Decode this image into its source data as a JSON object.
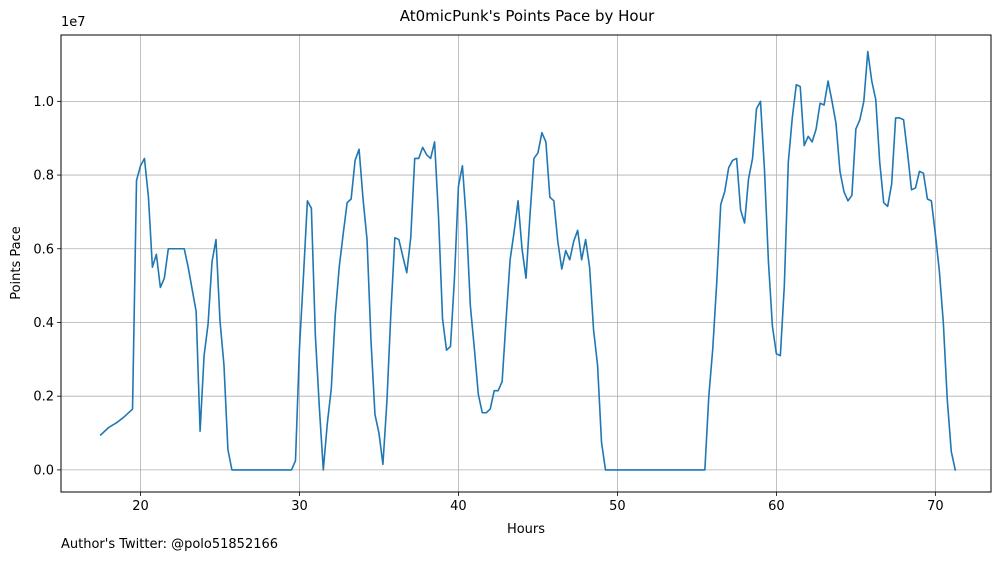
{
  "chart_data": {
    "type": "line",
    "title": "At0micPunk's Points Pace by Hour",
    "xlabel": "Hours",
    "ylabel": "Points Pace",
    "y_offset_label": "1e7",
    "y_scale": 10000000,
    "xlim": [
      15,
      73.5
    ],
    "ylim": [
      -600000,
      11800000
    ],
    "x_ticks": [
      20,
      30,
      40,
      50,
      60,
      70
    ],
    "x_tick_labels": [
      "20",
      "30",
      "40",
      "50",
      "60",
      "70"
    ],
    "y_ticks": [
      0,
      2000000,
      4000000,
      6000000,
      8000000,
      10000000
    ],
    "y_tick_labels": [
      "0.0",
      "0.2",
      "0.4",
      "0.6",
      "0.8",
      "1.0"
    ],
    "grid": true,
    "line_color": "#1f77b4",
    "series": [
      {
        "name": "",
        "x": [
          17.5,
          18.0,
          18.5,
          19.0,
          19.5,
          19.75,
          20.0,
          20.25,
          20.5,
          20.75,
          21.0,
          21.25,
          21.5,
          21.75,
          22.0,
          22.5,
          22.75,
          23.0,
          23.25,
          23.5,
          23.75,
          24.0,
          24.25,
          24.5,
          24.75,
          25.0,
          25.25,
          25.5,
          25.75,
          26.0,
          29.5,
          29.75,
          30.0,
          30.25,
          30.5,
          30.75,
          31.0,
          31.25,
          31.5,
          31.75,
          32.0,
          32.25,
          32.5,
          32.75,
          33.0,
          33.25,
          33.5,
          33.75,
          34.0,
          34.25,
          34.5,
          34.75,
          35.0,
          35.25,
          35.5,
          35.75,
          36.0,
          36.25,
          36.5,
          36.75,
          37.0,
          37.25,
          37.5,
          37.75,
          38.0,
          38.25,
          38.5,
          38.75,
          39.0,
          39.25,
          39.5,
          39.75,
          40.0,
          40.25,
          40.5,
          40.75,
          41.0,
          41.25,
          41.5,
          41.75,
          42.0,
          42.25,
          42.5,
          42.75,
          43.0,
          43.25,
          43.5,
          43.75,
          44.0,
          44.25,
          44.5,
          44.75,
          45.0,
          45.25,
          45.5,
          45.75,
          46.0,
          46.25,
          46.5,
          46.75,
          47.0,
          47.25,
          47.5,
          47.75,
          48.0,
          48.25,
          48.5,
          48.75,
          49.0,
          49.25,
          55.5,
          55.75,
          56.0,
          56.25,
          56.5,
          56.75,
          57.0,
          57.25,
          57.5,
          57.75,
          58.0,
          58.25,
          58.5,
          58.75,
          59.0,
          59.25,
          59.5,
          59.75,
          60.0,
          60.25,
          60.5,
          60.75,
          61.0,
          61.25,
          61.5,
          61.75,
          62.0,
          62.25,
          62.5,
          62.75,
          63.0,
          63.25,
          63.5,
          63.75,
          64.0,
          64.25,
          64.5,
          64.75,
          65.0,
          65.25,
          65.5,
          65.75,
          66.0,
          66.25,
          66.5,
          66.75,
          67.0,
          67.25,
          67.5,
          67.75,
          68.0,
          68.25,
          68.5,
          68.75,
          69.0,
          69.25,
          69.5,
          69.75,
          70.0,
          70.25,
          70.5,
          70.75,
          71.0,
          71.25
        ],
        "y": [
          950000,
          1150000,
          1280000,
          1450000,
          1650000,
          7850000,
          8250000,
          8450000,
          7400000,
          5500000,
          5850000,
          4950000,
          5200000,
          6000000,
          6000000,
          6000000,
          6000000,
          5500000,
          4900000,
          4300000,
          1050000,
          3100000,
          3950000,
          5650000,
          6250000,
          4050000,
          2850000,
          550000,
          0,
          0,
          0,
          250000,
          3300000,
          5250000,
          7300000,
          7100000,
          3650000,
          1700000,
          0,
          1250000,
          2200000,
          4200000,
          5500000,
          6400000,
          7250000,
          7350000,
          8400000,
          8700000,
          7350000,
          6250000,
          3500000,
          1500000,
          1000000,
          150000,
          1850000,
          4250000,
          6300000,
          6250000,
          5800000,
          5350000,
          6300000,
          8450000,
          8450000,
          8750000,
          8550000,
          8450000,
          8900000,
          6850000,
          4100000,
          3250000,
          3350000,
          5200000,
          7700000,
          8250000,
          6750000,
          4450000,
          3300000,
          2050000,
          1550000,
          1550000,
          1650000,
          2150000,
          2150000,
          2400000,
          4100000,
          5700000,
          6450000,
          7300000,
          6000000,
          5200000,
          6900000,
          8450000,
          8600000,
          9150000,
          8900000,
          7400000,
          7300000,
          6200000,
          5450000,
          5950000,
          5700000,
          6200000,
          6500000,
          5700000,
          6250000,
          5500000,
          3800000,
          2850000,
          750000,
          0,
          0,
          2000000,
          3300000,
          5100000,
          7200000,
          7550000,
          8200000,
          8400000,
          8450000,
          7050000,
          6700000,
          7900000,
          8450000,
          9800000,
          10000000,
          8150000,
          5650000,
          3900000,
          3150000,
          3100000,
          5000000,
          8350000,
          9550000,
          10450000,
          10400000,
          8800000,
          9050000,
          8900000,
          9250000,
          9950000,
          9900000,
          10550000,
          10000000,
          9400000,
          8100000,
          7550000,
          7300000,
          7450000,
          9250000,
          9500000,
          10000000,
          11350000,
          10550000,
          10050000,
          8350000,
          7250000,
          7150000,
          7750000,
          9550000,
          9550000,
          9500000,
          8600000,
          7600000,
          7650000,
          8100000,
          8050000,
          7350000,
          7300000,
          6400000,
          5400000,
          4000000,
          1900000,
          500000,
          0
        ]
      }
    ]
  },
  "footer": {
    "text": "Author's Twitter: @polo51852166"
  }
}
